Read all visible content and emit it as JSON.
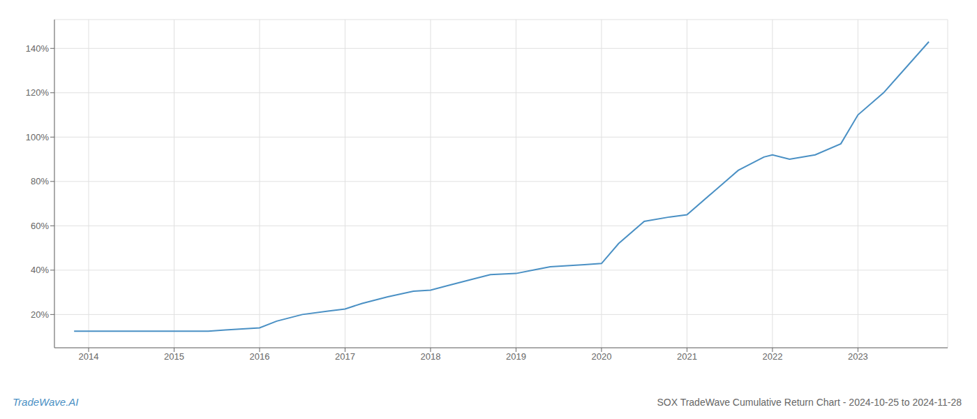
{
  "chart_data": {
    "type": "line",
    "title": "SOX TradeWave Cumulative Return Chart - 2024-10-25 to 2024-11-28",
    "annotations": [
      "TradeWave.AI"
    ],
    "x": [
      2013.83,
      2014.0,
      2014.1,
      2014.2,
      2014.4,
      2014.6,
      2014.8,
      2015.0,
      2015.2,
      2015.4,
      2015.6,
      2015.8,
      2016.0,
      2016.2,
      2016.5,
      2016.8,
      2017.0,
      2017.2,
      2017.5,
      2017.8,
      2018.0,
      2018.2,
      2018.5,
      2018.7,
      2019.0,
      2019.2,
      2019.4,
      2019.6,
      2019.8,
      2020.0,
      2020.2,
      2020.5,
      2020.8,
      2021.0,
      2021.3,
      2021.6,
      2021.9,
      2022.0,
      2022.2,
      2022.5,
      2022.8,
      2023.0,
      2023.3,
      2023.6,
      2023.83
    ],
    "values": [
      12.5,
      12.5,
      12.5,
      12.5,
      12.5,
      12.5,
      12.5,
      12.5,
      12.5,
      12.5,
      13.0,
      13.5,
      14.0,
      17.0,
      20.0,
      21.5,
      22.5,
      25.0,
      28.0,
      30.5,
      31.0,
      33.0,
      36.0,
      38.0,
      38.5,
      40.0,
      41.5,
      42.0,
      42.5,
      43.0,
      52.0,
      62.0,
      64.0,
      65.0,
      75.0,
      85.0,
      91.0,
      92.0,
      90.0,
      92.0,
      97.0,
      110.0,
      120.0,
      133.0,
      143.0
    ],
    "color": "#4a90c4",
    "xlim": [
      2013.6,
      2024.05
    ],
    "xticks": [
      2014,
      2015,
      2016,
      2017,
      2018,
      2019,
      2020,
      2021,
      2022,
      2023
    ],
    "ylim": [
      5,
      153
    ],
    "yticks": [
      {
        "value": 20,
        "label": "20%"
      },
      {
        "value": 40,
        "label": "40%"
      },
      {
        "value": 60,
        "label": "60%"
      },
      {
        "value": 80,
        "label": "80%"
      },
      {
        "value": 100,
        "label": "100%"
      },
      {
        "value": 120,
        "label": "120%"
      },
      {
        "value": 140,
        "label": "140%"
      }
    ],
    "grid": true
  }
}
